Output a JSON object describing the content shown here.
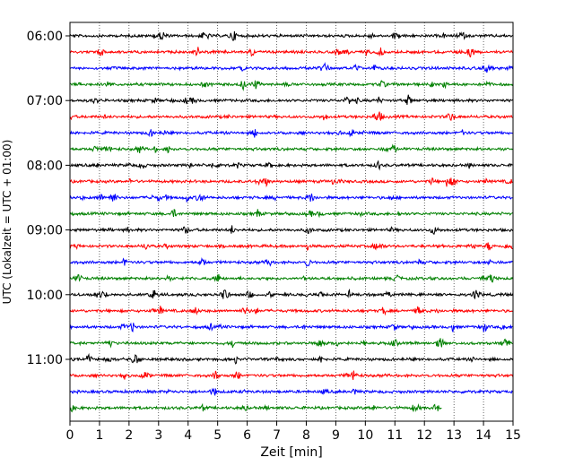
{
  "chart_data": {
    "type": "line",
    "xlabel": "Zeit  [min]",
    "ylabel": "UTC (Lokalzeit = UTC + 01:00)",
    "xlim": [
      0,
      15
    ],
    "x_ticks": [
      0,
      1,
      2,
      3,
      4,
      5,
      6,
      7,
      8,
      9,
      10,
      11,
      12,
      13,
      14,
      15
    ],
    "x_tick_labels": [
      "0",
      "1",
      "2",
      "3",
      "4",
      "5",
      "6",
      "7",
      "8",
      "9",
      "10",
      "11",
      "12",
      "13",
      "14",
      "15"
    ],
    "grid": "x-dotted",
    "y_tick_labels": [
      {
        "label": "06:00",
        "trace_index": 0
      },
      {
        "label": "07:00",
        "trace_index": 4
      },
      {
        "label": "08:00",
        "trace_index": 8
      },
      {
        "label": "09:00",
        "trace_index": 12
      },
      {
        "label": "10:00",
        "trace_index": 16
      },
      {
        "label": "11:00",
        "trace_index": 20
      }
    ],
    "series_colors": [
      "#000000",
      "#ff0000",
      "#0000ff",
      "#008000"
    ],
    "traces": [
      {
        "start": "06:00",
        "color": "#000000",
        "x_end": 15
      },
      {
        "start": "06:15",
        "color": "#ff0000",
        "x_end": 15
      },
      {
        "start": "06:30",
        "color": "#0000ff",
        "x_end": 15
      },
      {
        "start": "06:45",
        "color": "#008000",
        "x_end": 15
      },
      {
        "start": "07:00",
        "color": "#000000",
        "x_end": 15
      },
      {
        "start": "07:15",
        "color": "#ff0000",
        "x_end": 15
      },
      {
        "start": "07:30",
        "color": "#0000ff",
        "x_end": 15
      },
      {
        "start": "07:45",
        "color": "#008000",
        "x_end": 15
      },
      {
        "start": "08:00",
        "color": "#000000",
        "x_end": 15
      },
      {
        "start": "08:15",
        "color": "#ff0000",
        "x_end": 15
      },
      {
        "start": "08:30",
        "color": "#0000ff",
        "x_end": 15
      },
      {
        "start": "08:45",
        "color": "#008000",
        "x_end": 15
      },
      {
        "start": "09:00",
        "color": "#000000",
        "x_end": 15
      },
      {
        "start": "09:15",
        "color": "#ff0000",
        "x_end": 15
      },
      {
        "start": "09:30",
        "color": "#0000ff",
        "x_end": 15
      },
      {
        "start": "09:45",
        "color": "#008000",
        "x_end": 15
      },
      {
        "start": "10:00",
        "color": "#000000",
        "x_end": 15
      },
      {
        "start": "10:15",
        "color": "#ff0000",
        "x_end": 15
      },
      {
        "start": "10:30",
        "color": "#0000ff",
        "x_end": 15
      },
      {
        "start": "10:45",
        "color": "#008000",
        "x_end": 15
      },
      {
        "start": "11:00",
        "color": "#000000",
        "x_end": 15
      },
      {
        "start": "11:15",
        "color": "#ff0000",
        "x_end": 15
      },
      {
        "start": "11:30",
        "color": "#0000ff",
        "x_end": 15
      },
      {
        "start": "11:45",
        "color": "#008000",
        "x_end": 12.6
      }
    ]
  }
}
